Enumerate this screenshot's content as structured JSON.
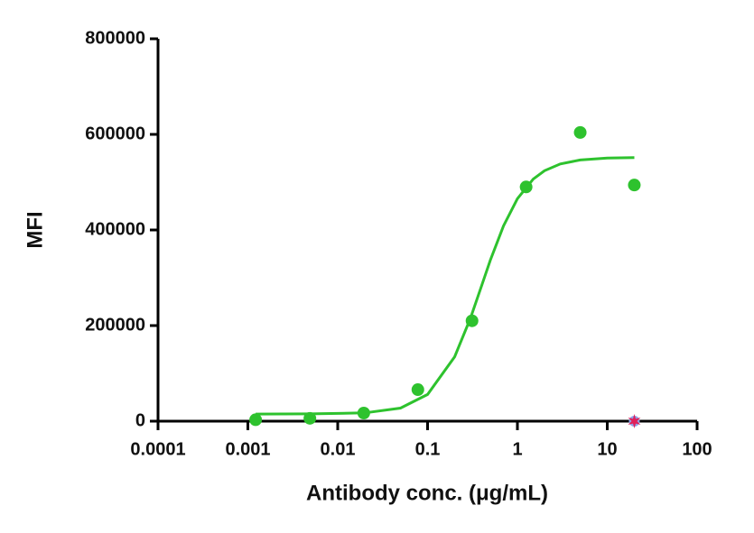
{
  "chart_data": {
    "type": "scatter",
    "xlabel": "Antibody conc. (μg/mL)",
    "ylabel": "MFI",
    "xscale": "log",
    "xlim": [
      0.0001,
      100
    ],
    "xticks": [
      0.0001,
      0.001,
      0.01,
      0.1,
      1,
      10,
      100
    ],
    "ylim": [
      0,
      800000
    ],
    "yticks": [
      0,
      200000,
      400000,
      600000,
      800000
    ],
    "series": [
      {
        "type": "scatter",
        "marker": "circle",
        "color": "#2ec22e",
        "x": [
          0.00122,
          0.0049,
          0.0195,
          0.078,
          0.3125,
          1.25,
          5,
          20
        ],
        "values": [
          3000,
          6000,
          17000,
          66000,
          210000,
          490000,
          604000,
          494000
        ]
      },
      {
        "type": "line",
        "color": "#2ec22e",
        "x": [
          0.00122,
          0.005,
          0.02,
          0.05,
          0.1,
          0.2,
          0.3,
          0.4,
          0.5,
          0.7,
          1,
          1.5,
          2,
          3,
          5,
          10,
          20
        ],
        "values": [
          15000,
          15200,
          17400,
          27400,
          55900,
          134800,
          215500,
          283500,
          336700,
          408400,
          465500,
          506400,
          523900,
          538100,
          546400,
          550400,
          551500
        ]
      },
      {
        "type": "scatter",
        "marker": "star",
        "color": "#e0205a",
        "x": [
          20
        ],
        "values": [
          0
        ]
      }
    ]
  }
}
